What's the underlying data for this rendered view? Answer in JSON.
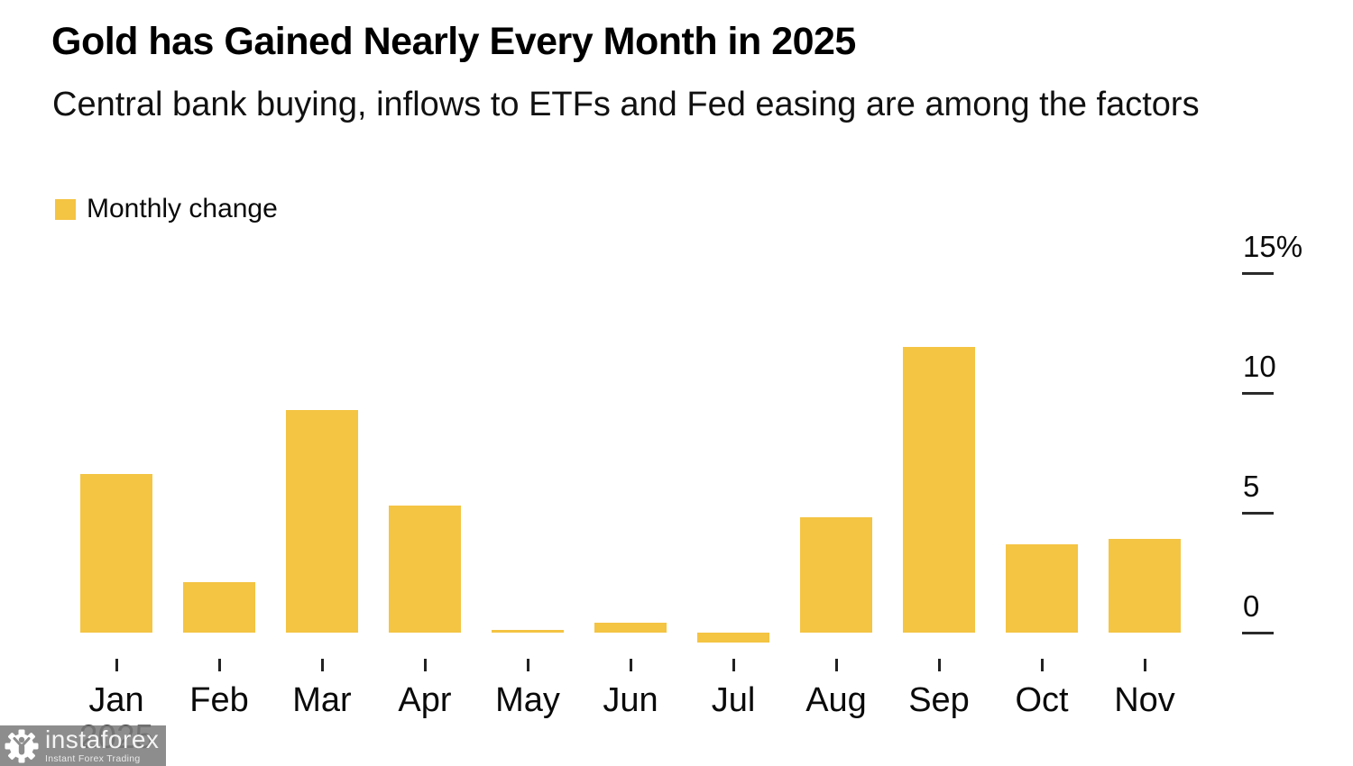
{
  "header": {
    "title": "Gold has Gained Nearly Every Month in 2025",
    "subtitle": "Central bank buying, inflows to ETFs and Fed easing are among the factors"
  },
  "legend": {
    "label": "Monthly change",
    "swatch_color": "#F4C443"
  },
  "chart_data": {
    "type": "bar",
    "title": "Gold has Gained Nearly Every Month in 2025",
    "subtitle": "Central bank buying, inflows to ETFs and Fed easing are among the factors",
    "categories": [
      "Jan",
      "Feb",
      "Mar",
      "Apr",
      "May",
      "Jun",
      "Jul",
      "Aug",
      "Sep",
      "Oct",
      "Nov"
    ],
    "series": [
      {
        "name": "Monthly change",
        "values": [
          6.6,
          2.1,
          9.3,
          5.3,
          0.1,
          0.4,
          -0.4,
          4.8,
          11.9,
          3.7,
          3.9
        ]
      }
    ],
    "unit": "%",
    "x_year_label": "2025",
    "y_ticks": [
      {
        "value": 0,
        "label": "0"
      },
      {
        "value": 5,
        "label": "5"
      },
      {
        "value": 10,
        "label": "10"
      },
      {
        "value": 15,
        "label": "15%"
      }
    ],
    "ylim": [
      -1,
      16
    ],
    "bar_color": "#F4C443",
    "grid": false,
    "legend_position": "top-left",
    "y_axis_side": "right"
  },
  "watermark": {
    "brand": "instaforex",
    "tagline": "Instant Forex Trading",
    "logo": "gear-person-icon"
  }
}
